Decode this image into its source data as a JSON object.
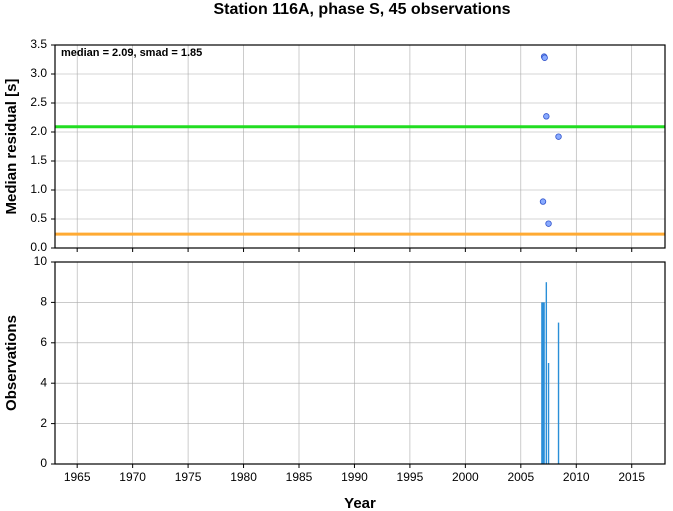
{
  "chart_data": [
    {
      "type": "scatter",
      "title": "Station 116A, phase S, 45 observations",
      "ylabel": "Median residual [s]",
      "annotation": "median = 2.09, smad = 1.85",
      "x": [
        2007.1,
        2007.15,
        2007.3,
        2008.4,
        2007.0,
        2007.5
      ],
      "values": [
        3.3,
        3.28,
        2.27,
        1.92,
        0.8,
        0.42
      ],
      "color": "#88aaff",
      "edge_color": "#3355cc",
      "hlines": [
        {
          "value": 2.09,
          "color": "#22dd22"
        },
        {
          "value": 0.24,
          "color": "#ffaa33"
        }
      ],
      "xlim": [
        1963,
        2018
      ],
      "xticks": [
        1965,
        1970,
        1975,
        1980,
        1985,
        1990,
        1995,
        2000,
        2005,
        2010,
        2015
      ],
      "ylim": [
        0,
        3.5
      ],
      "yticks": [
        {
          "value": 0,
          "label": "0.0"
        },
        0.5,
        {
          "value": 1,
          "label": "1.0"
        },
        1.5,
        {
          "value": 2,
          "label": "2.0"
        },
        2.5,
        {
          "value": 3,
          "label": "3.0"
        },
        3.5
      ],
      "grid": true
    },
    {
      "type": "bar",
      "ylabel": "Observations",
      "xlabel": "Year",
      "x": [
        2006.9,
        2007.0,
        2007.1,
        2007.3,
        2007.5,
        2008.4
      ],
      "values": [
        8,
        8,
        8,
        9,
        5,
        7
      ],
      "color": "#2a8fd8",
      "xlim": [
        1963,
        2018
      ],
      "xticks": [
        1965,
        1970,
        1975,
        1980,
        1985,
        1990,
        1995,
        2000,
        2005,
        2010,
        2015
      ],
      "ylim": [
        0,
        10
      ],
      "yticks": [
        0,
        2,
        4,
        6,
        8,
        10
      ],
      "grid": true
    }
  ]
}
